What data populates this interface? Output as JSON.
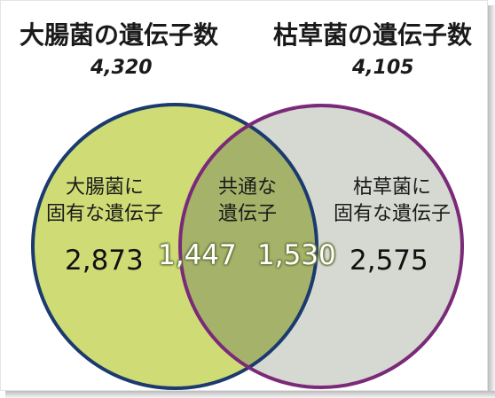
{
  "left_set": {
    "title": "大腸菌の遺伝子数",
    "total": "4,320",
    "unique_label_line1": "大腸菌に",
    "unique_label_line2": "固有な遺伝子",
    "unique_count": "2,873",
    "color": "#cfdc76",
    "stroke": "#1b3a6e"
  },
  "right_set": {
    "title": "枯草菌の遺伝子数",
    "total": "4,105",
    "unique_label_line1": "枯草菌に",
    "unique_label_line2": "固有な遺伝子",
    "unique_count": "2,575",
    "color": "#d5d9d2",
    "stroke": "#7a2a78"
  },
  "overlap": {
    "label_line1": "共通な",
    "label_line2": "遺伝子",
    "count_left": "1,447",
    "count_right": "1,530",
    "color": "#a5b36a"
  }
}
